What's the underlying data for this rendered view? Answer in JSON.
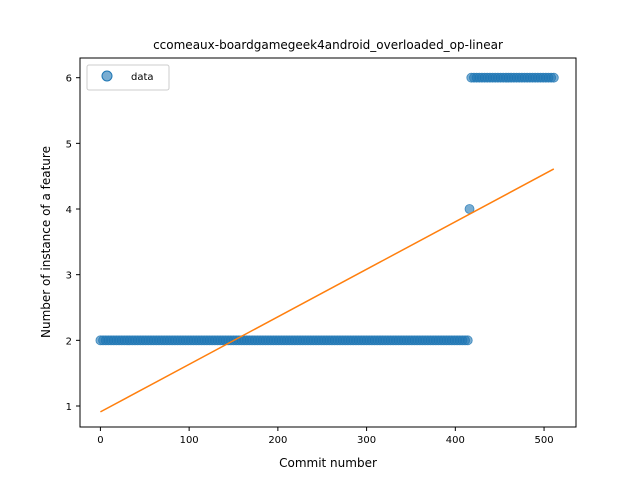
{
  "chart_data": {
    "type": "scatter",
    "title": "ccomeaux-boardgamegeek4android_overloaded_op-linear",
    "xlabel": "Commit number",
    "ylabel": "Number of instance of a feature",
    "xlim": [
      -23,
      536
    ],
    "ylim": [
      0.68,
      6.3
    ],
    "xticks": [
      0,
      100,
      200,
      300,
      400,
      500
    ],
    "yticks": [
      1,
      2,
      3,
      4,
      5,
      6
    ],
    "grid": false,
    "legend_position": "top-left",
    "colors": {
      "data": "#1f77b4",
      "fit": "#ff7f0e"
    },
    "series": [
      {
        "name": "data",
        "kind": "scatter",
        "segments": [
          {
            "x_start": 0,
            "x_end": 414,
            "y": 2
          },
          {
            "x_start": 416,
            "x_end": 416,
            "y": 4
          },
          {
            "x_start": 418,
            "x_end": 511,
            "y": 6
          }
        ],
        "marker_step": 3
      },
      {
        "kind": "line",
        "x": [
          0,
          511
        ],
        "y": [
          0.91,
          4.61
        ]
      }
    ]
  }
}
